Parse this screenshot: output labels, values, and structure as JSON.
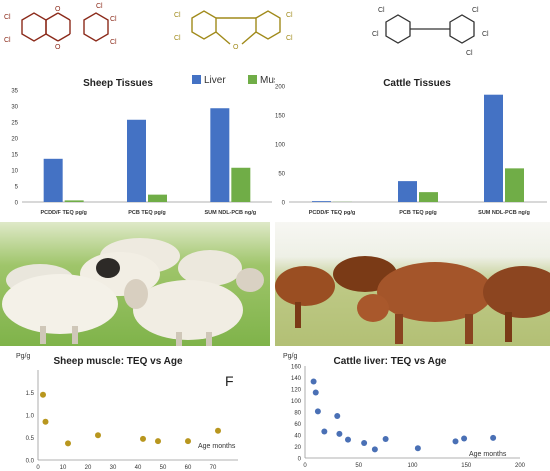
{
  "chart_data": [
    {
      "type": "bar",
      "title": "Sheep Tissues",
      "categories": [
        "PCDD/F TEQ pg/g",
        "PCB TEQ pg/g",
        "SUM NDL-PCB ng/g"
      ],
      "series": [
        {
          "name": "Liver",
          "values": [
            13.5,
            25.7,
            29.3
          ]
        },
        {
          "name": "Muscle",
          "values": [
            0.5,
            2.3,
            10.7
          ]
        }
      ],
      "ylim": [
        0,
        35
      ],
      "yticks": [
        "0",
        "5",
        "10",
        "15",
        "20",
        "25",
        "30",
        "35"
      ],
      "legend": "top-right",
      "grid": false
    },
    {
      "type": "bar",
      "title": "Cattle Tissues",
      "categories": [
        "PCDD/F TEQ pg/g",
        "PCB TEQ pg/g",
        "SUM NDL-PCB ng/g"
      ],
      "series": [
        {
          "name": "Liver",
          "values": [
            1.5,
            36,
            185
          ]
        },
        {
          "name": "Muscle",
          "values": [
            0.3,
            17,
            58
          ]
        }
      ],
      "ylim": [
        0,
        200
      ],
      "yticks": [
        "0",
        "50",
        "100",
        "150",
        "200"
      ],
      "grid": false
    },
    {
      "type": "scatter",
      "title": "Sheep muscle: TEQ vs Age",
      "ylabel": "Pg/g",
      "annotation": "F",
      "x": [
        2,
        3,
        12,
        24,
        42,
        48,
        60,
        72
      ],
      "y": [
        1.45,
        0.85,
        0.37,
        0.55,
        0.47,
        0.42,
        0.42,
        0.65
      ],
      "xlim": [
        0,
        80
      ],
      "ylim": [
        0,
        2.0
      ],
      "xticks": [
        "0",
        "10",
        "20",
        "30",
        "40",
        "50",
        "60",
        "70"
      ],
      "yticks": [
        "0.0",
        "0.5",
        "1.0",
        "1.5"
      ],
      "color": "#b8961e"
    },
    {
      "type": "scatter",
      "title": "Cattle liver: TEQ vs Age",
      "ylabel": "Pg/g",
      "xlabel": "Age months",
      "x": [
        8,
        10,
        12,
        18,
        30,
        32,
        40,
        55,
        65,
        75,
        105,
        140,
        148,
        175
      ],
      "y": [
        133,
        114,
        81,
        46,
        73,
        42,
        32,
        26,
        15,
        33,
        17,
        29,
        34,
        35
      ],
      "xlim": [
        0,
        200
      ],
      "ylim": [
        0,
        160
      ],
      "xticks": [
        "0",
        "50",
        "100",
        "150",
        "200"
      ],
      "yticks": [
        "0",
        "20",
        "40",
        "60",
        "80",
        "100",
        "120",
        "140",
        "160"
      ],
      "color": "#4a70b5"
    }
  ],
  "extra": {
    "sheep_scatter_xlabel": "Age months"
  },
  "molecules": {
    "dioxin_labels": [
      "Cl",
      "Cl",
      "Cl",
      "Cl",
      "Cl"
    ],
    "furan_labels": [
      "Cl",
      "Cl",
      "Cl",
      "Cl"
    ],
    "pcb_labels": [
      "Cl",
      "Cl",
      "Cl",
      "Cl",
      "Cl"
    ]
  },
  "colors": {
    "liver": "#4472c4",
    "muscle": "#70ad47",
    "dioxin": "#8b2a1a",
    "furan": "#a08a1a",
    "pcb": "#333333"
  }
}
